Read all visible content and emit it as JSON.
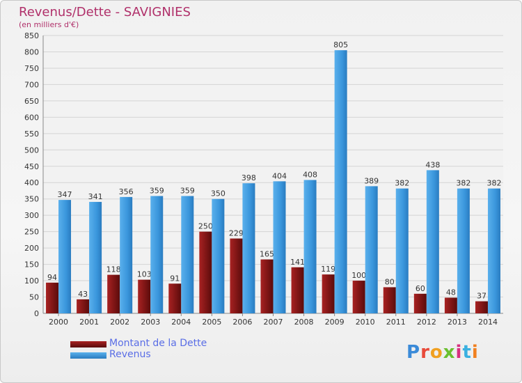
{
  "chart_data": {
    "type": "bar",
    "title": "Revenus/Dette - SAVIGNIES",
    "subtitle": "(en milliers d'€)",
    "categories": [
      "2000",
      "2001",
      "2002",
      "2003",
      "2004",
      "2005",
      "2006",
      "2007",
      "2008",
      "2009",
      "2010",
      "2011",
      "2012",
      "2013",
      "2014"
    ],
    "series": [
      {
        "name": "Montant de la Dette",
        "color": "#8b1a1a",
        "values": [
          94,
          43,
          118,
          103,
          91,
          250,
          229,
          165,
          141,
          119,
          100,
          80,
          60,
          48,
          37
        ]
      },
      {
        "name": "Revenus",
        "color": "#3a96dc",
        "values": [
          347,
          341,
          356,
          359,
          359,
          350,
          398,
          404,
          408,
          805,
          389,
          382,
          438,
          382,
          382
        ]
      }
    ],
    "ylim": [
      0,
      850
    ],
    "ytick_step": 50,
    "grid": true,
    "legend_position": "bottom-left"
  },
  "branding": {
    "logo_text": "Proxiti",
    "letter_colors": [
      "#3a8ad8",
      "#e84a3a",
      "#f0a020",
      "#6ac030",
      "#d83080",
      "#3ab0e0",
      "#f08020"
    ]
  }
}
